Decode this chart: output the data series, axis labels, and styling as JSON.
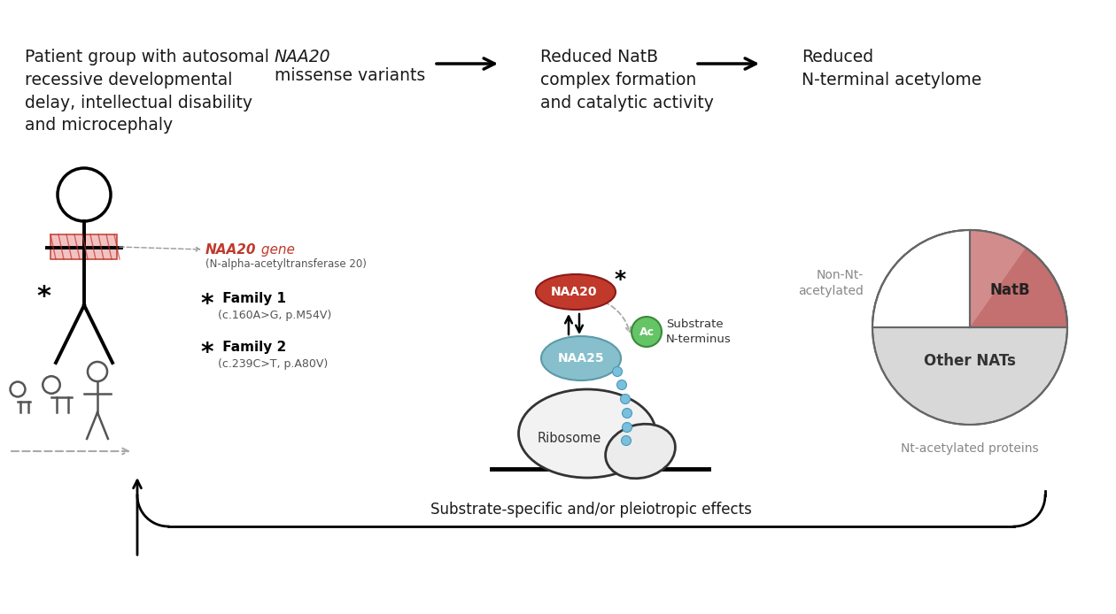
{
  "bg_color": "#ffffff",
  "title_color": "#1a1a1a",
  "arrow_color": "#111111",
  "red_color": "#c0392b",
  "red_light": "#e8a0a0",
  "teal_color": "#7ab8c0",
  "green_color": "#5cb85c",
  "blue_dot_color": "#7abfdb",
  "gray_color": "#888888",
  "pink_gene": "#e8a0a0",
  "header1": "Patient group with autosomal\nrecessive developmental\ndelay, intellectual disability\nand microcephaly",
  "header2_italic": "NAA20",
  "header2_rest": "missense variants",
  "header3": "Reduced NatB\ncomplex formation\nand catalytic activity",
  "header4": "Reduced\nN-terminal acetylome",
  "gene_label": "NAA20",
  "gene_label2": " gene",
  "gene_sublabel": "(N-alpha-acetyltransferase 20)",
  "family1_mut": "(c.160A>G, p.M54V)",
  "family2_mut": "(c.239C>T, p.A80V)",
  "bottom_text": "Substrate-specific and/or pleiotropic effects",
  "non_nt_label": "Non-Nt-\nacetylated",
  "nt_acetylated_label": "Nt-acetylated proteins",
  "other_nats_label": "Other NATs",
  "natb_label": "NatB",
  "naa20_label": "NAA20",
  "naa25_label": "NAA25",
  "ac_label": "Ac",
  "substrate_label": "Substrate\nN-terminus",
  "ribosome_label": "Ribosome"
}
